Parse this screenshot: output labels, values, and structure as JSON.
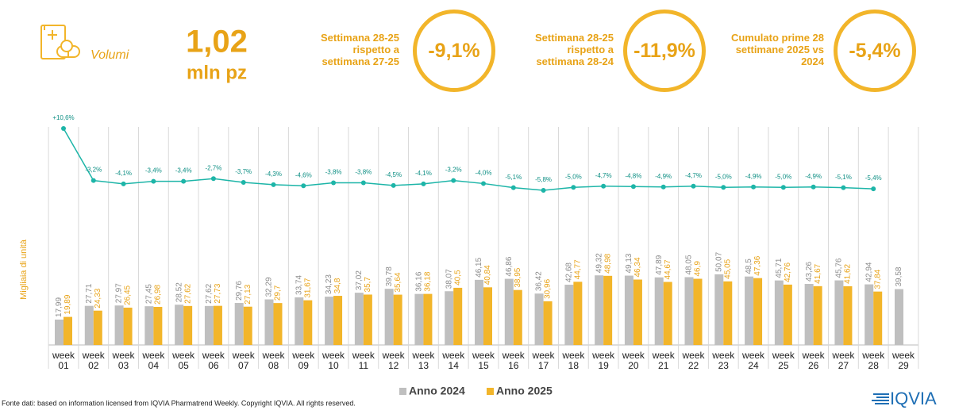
{
  "header": {
    "icon_label": "Volumi",
    "value": "1,02",
    "unit": "mln pz"
  },
  "kpis": [
    {
      "label": "Settimana 28-25 rispetto a settimana 27-25",
      "value": "-9,1%"
    },
    {
      "label": "Settimana 28-25 rispetto a settimana 28-24",
      "value": "-11,9%"
    },
    {
      "label": "Cumulato prime 28 settimane 2025 vs 2024",
      "value": "-5,4%"
    }
  ],
  "chart_data": {
    "type": "bar",
    "y_label": "Migliaia di unità",
    "ylim": [
      0,
      100
    ],
    "categories": [
      "week 01",
      "week 02",
      "week 03",
      "week 04",
      "week 05",
      "week 06",
      "week 07",
      "week 08",
      "week 09",
      "week 10",
      "week 11",
      "week 12",
      "week 13",
      "week 14",
      "week 15",
      "week 16",
      "week 17",
      "week 18",
      "week 19",
      "week 20",
      "week 21",
      "week 22",
      "week 23",
      "week 24",
      "week 25",
      "week 26",
      "week 27",
      "week 28",
      "week 29"
    ],
    "series": [
      {
        "name": "Anno 2024",
        "color": "#bfbfbf",
        "label_color": "#8c8c8c",
        "values": [
          17.99,
          27.71,
          27.97,
          27.45,
          28.52,
          27.62,
          29.76,
          32.29,
          33.74,
          34.23,
          37.02,
          39.78,
          36.16,
          38.07,
          46.15,
          46.86,
          36.42,
          42.68,
          49.32,
          49.13,
          47.89,
          48.05,
          50.07,
          48.5,
          45.71,
          43.26,
          45.76,
          42.94,
          39.58
        ],
        "value_labels": [
          "17,99",
          "27,71",
          "27,97",
          "27,45",
          "28,52",
          "27,62",
          "29,76",
          "32,29",
          "33,74",
          "34,23",
          "37,02",
          "39,78",
          "36,16",
          "38,07",
          "46,15",
          "46,86",
          "36,42",
          "42,68",
          "49,32",
          "49,13",
          "47,89",
          "48,05",
          "50,07",
          "48,5",
          "45,71",
          "43,26",
          "45,76",
          "42,94",
          "39,58"
        ]
      },
      {
        "name": "Anno 2025",
        "color": "#f2b52a",
        "label_color": "#e8a317",
        "values": [
          19.89,
          24.33,
          26.45,
          26.98,
          27.62,
          27.73,
          27.13,
          29.7,
          31.67,
          34.8,
          35.7,
          35.64,
          36.18,
          40.5,
          40.84,
          38.95,
          30.96,
          44.77,
          48.98,
          46.34,
          44.67,
          46.9,
          45.05,
          47.36,
          42.76,
          41.67,
          41.62,
          37.84,
          null
        ],
        "value_labels": [
          "19,89",
          "24,33",
          "26,45",
          "26,98",
          "27,62",
          "27,73",
          "27,13",
          "29,7",
          "31,67",
          "34,8",
          "35,7",
          "35,64",
          "36,18",
          "40,5",
          "40,84",
          "38,95",
          "30,96",
          "44,77",
          "48,98",
          "46,34",
          "44,67",
          "46,9",
          "45,05",
          "47,36",
          "42,76",
          "41,67",
          "41,62",
          "37,84",
          null
        ]
      }
    ],
    "change_line": {
      "color": "#1db5a8",
      "values": [
        10.6,
        -3.2,
        -4.1,
        -3.4,
        -3.4,
        -2.7,
        -3.7,
        -4.3,
        -4.6,
        -3.8,
        -3.8,
        -4.5,
        -4.1,
        -3.2,
        -4.0,
        -5.1,
        -5.8,
        -5.0,
        -4.7,
        -4.8,
        -4.9,
        -4.7,
        -5.0,
        -4.9,
        -5.0,
        -4.9,
        -5.1,
        -5.4,
        null
      ],
      "value_labels": [
        "+10,6%",
        "-3,2%",
        "-4,1%",
        "-3,4%",
        "-3,4%",
        "-2,7%",
        "-3,7%",
        "-4,3%",
        "-4,6%",
        "-3,8%",
        "-3,8%",
        "-4,5%",
        "-4,1%",
        "-3,2%",
        "-4,0%",
        "-5,1%",
        "-5,8%",
        "-5,0%",
        "-4,7%",
        "-4,8%",
        "-4,9%",
        "-4,7%",
        "-5,0%",
        "-4,9%",
        "-5,0%",
        "-4,9%",
        "-5,1%",
        "-5,4%",
        null
      ]
    },
    "legend": "bottom"
  },
  "footer": {
    "source": "Fonte dati: based on information licensed from IQVIA Pharmatrend Weekly. Copyright IQVIA. All rights reserved.",
    "logo": "IQVIA"
  }
}
